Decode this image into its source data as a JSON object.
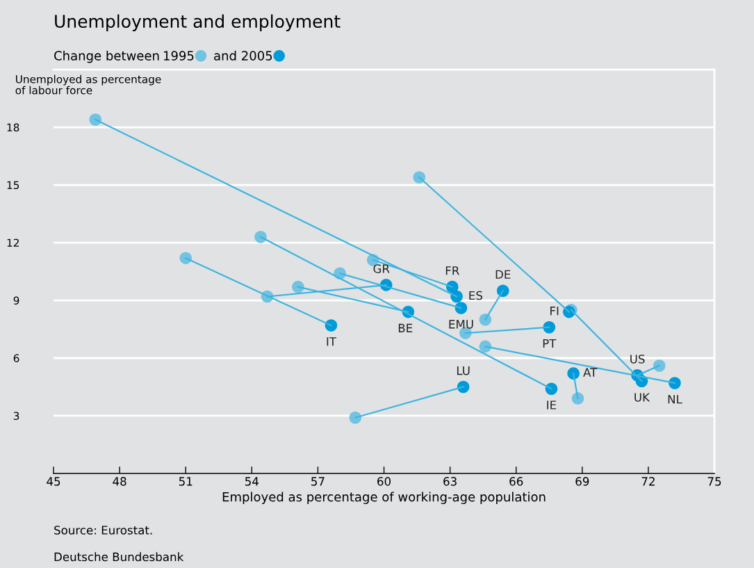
{
  "chart_data": {
    "type": "scatter",
    "title": "Unemployment and employment",
    "legend_title": "Change between",
    "xlabel": "Employed as percentage of working-age population",
    "ylabel": "Unemployed as percentage\nof labour force",
    "xlim": [
      45,
      75
    ],
    "xticks": [
      45,
      48,
      51,
      54,
      57,
      60,
      63,
      66,
      69,
      72,
      75
    ],
    "ylim": [
      0,
      21
    ],
    "yticks": [
      3,
      6,
      9,
      12,
      15,
      18
    ],
    "grid": "y",
    "legend": "top left",
    "marker": "circle",
    "series": [
      {
        "type": "line",
        "marker": "none",
        "color": "#3db4e0",
        "x": [
          46.9,
          63.3
        ],
        "values": [
          18.4,
          9.2
        ]
      },
      {
        "type": "line",
        "marker": "none",
        "color": "#3db4e0",
        "x": [
          61.6,
          68.4
        ],
        "values": [
          15.4,
          8.4
        ]
      },
      {
        "type": "line",
        "marker": "none",
        "color": "#3db4e0",
        "x": [
          68.5,
          71.7
        ],
        "values": [
          8.5,
          4.8
        ]
      },
      {
        "type": "line",
        "marker": "none",
        "color": "#3db4e0",
        "x": [
          54.4,
          67.6
        ],
        "values": [
          12.3,
          4.4
        ]
      },
      {
        "type": "line",
        "marker": "none",
        "color": "#3db4e0",
        "x": [
          51.0,
          57.6
        ],
        "values": [
          11.2,
          7.7
        ]
      },
      {
        "type": "line",
        "marker": "none",
        "color": "#3db4e0",
        "x": [
          54.7,
          60.1
        ],
        "values": [
          9.2,
          9.8
        ]
      },
      {
        "type": "line",
        "marker": "none",
        "color": "#3db4e0",
        "x": [
          56.1,
          61.1
        ],
        "values": [
          9.7,
          8.4
        ]
      },
      {
        "type": "line",
        "marker": "none",
        "color": "#3db4e0",
        "x": [
          59.5,
          63.1
        ],
        "values": [
          11.1,
          9.7
        ]
      },
      {
        "type": "line",
        "marker": "none",
        "color": "#3db4e0",
        "x": [
          58.0,
          63.5
        ],
        "values": [
          10.4,
          8.6
        ]
      },
      {
        "type": "line",
        "marker": "none",
        "color": "#3db4e0",
        "x": [
          64.6,
          65.4
        ],
        "values": [
          8.0,
          9.5
        ]
      },
      {
        "type": "line",
        "marker": "none",
        "color": "#3db4e0",
        "x": [
          63.7,
          67.5
        ],
        "values": [
          7.3,
          7.6
        ]
      },
      {
        "type": "line",
        "marker": "none",
        "color": "#3db4e0",
        "x": [
          64.6,
          73.2
        ],
        "values": [
          6.6,
          4.7
        ]
      },
      {
        "type": "line",
        "marker": "none",
        "color": "#3db4e0",
        "x": [
          72.5,
          71.5
        ],
        "values": [
          5.6,
          5.1
        ]
      },
      {
        "type": "line",
        "marker": "none",
        "color": "#3db4e0",
        "x": [
          68.8,
          68.6
        ],
        "values": [
          3.9,
          5.2
        ]
      },
      {
        "type": "line",
        "marker": "none",
        "color": "#3db4e0",
        "x": [
          58.7,
          63.6
        ],
        "values": [
          2.9,
          4.5
        ]
      },
      {
        "name": "1995",
        "color": "#72c2e2",
        "x": [
          46.9,
          61.6,
          68.5,
          54.4,
          51.0,
          54.7,
          56.1,
          59.5,
          58.0,
          64.6,
          63.7,
          64.6,
          72.5,
          68.8,
          58.7
        ],
        "values": [
          18.4,
          15.4,
          8.5,
          12.3,
          11.2,
          9.2,
          9.7,
          11.1,
          10.4,
          8.0,
          7.3,
          6.6,
          5.6,
          3.9,
          2.9
        ]
      },
      {
        "name": "and 2005",
        "color": "#009bd8",
        "x": [
          63.3,
          68.4,
          71.7,
          67.6,
          57.6,
          60.1,
          61.1,
          63.1,
          63.5,
          65.4,
          67.5,
          73.2,
          71.5,
          68.6,
          63.6
        ],
        "values": [
          9.2,
          8.4,
          4.8,
          4.4,
          7.7,
          9.8,
          8.4,
          9.7,
          8.6,
          9.5,
          7.6,
          4.7,
          5.1,
          5.2,
          4.5
        ]
      }
    ],
    "annotations": [
      {
        "text": "ES",
        "x": 63.3,
        "y": 9.2
      },
      {
        "text": "FI",
        "x": 68.4,
        "y": 8.4
      },
      {
        "text": "UK",
        "x": 71.7,
        "y": 4.8
      },
      {
        "text": "IE",
        "x": 67.6,
        "y": 4.4
      },
      {
        "text": "IT",
        "x": 57.6,
        "y": 7.7
      },
      {
        "text": "GR",
        "x": 60.1,
        "y": 9.8
      },
      {
        "text": "BE",
        "x": 61.1,
        "y": 8.4
      },
      {
        "text": "FR",
        "x": 63.1,
        "y": 9.7
      },
      {
        "text": "EMU",
        "x": 63.5,
        "y": 8.6
      },
      {
        "text": "DE",
        "x": 65.4,
        "y": 9.5
      },
      {
        "text": "PT",
        "x": 67.5,
        "y": 7.6
      },
      {
        "text": "NL",
        "x": 73.2,
        "y": 4.7
      },
      {
        "text": "US",
        "x": 71.5,
        "y": 5.1
      },
      {
        "text": "AT",
        "x": 68.6,
        "y": 5.2
      },
      {
        "text": "LU",
        "x": 63.6,
        "y": 4.5
      },
      "Source: Eurostat.",
      "Deutsche Bundesbank"
    ]
  }
}
